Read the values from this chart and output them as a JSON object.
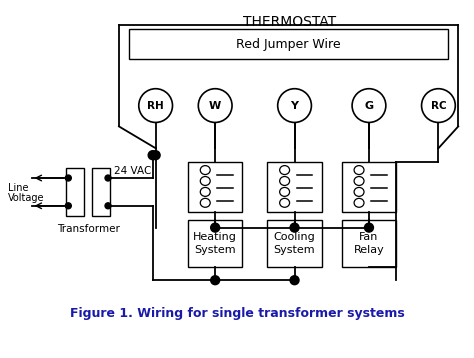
{
  "title": "THERMOSTAT",
  "jumper_label": "Red Jumper Wire",
  "terminal_labels": [
    "RH",
    "W",
    "Y",
    "G",
    "RC"
  ],
  "system_labels": [
    [
      "Heating",
      "System"
    ],
    [
      "Cooling",
      "System"
    ],
    [
      "Fan",
      "Relay"
    ]
  ],
  "transformer_label": "Transformer",
  "voltage_label": "24 VAC",
  "line_voltage_label": "Line\nVoltage",
  "figure_caption": "Figure 1. Wiring for single transformer systems",
  "bg_color": "#ffffff",
  "line_color": "#000000",
  "caption_color": "#1a1aaa"
}
